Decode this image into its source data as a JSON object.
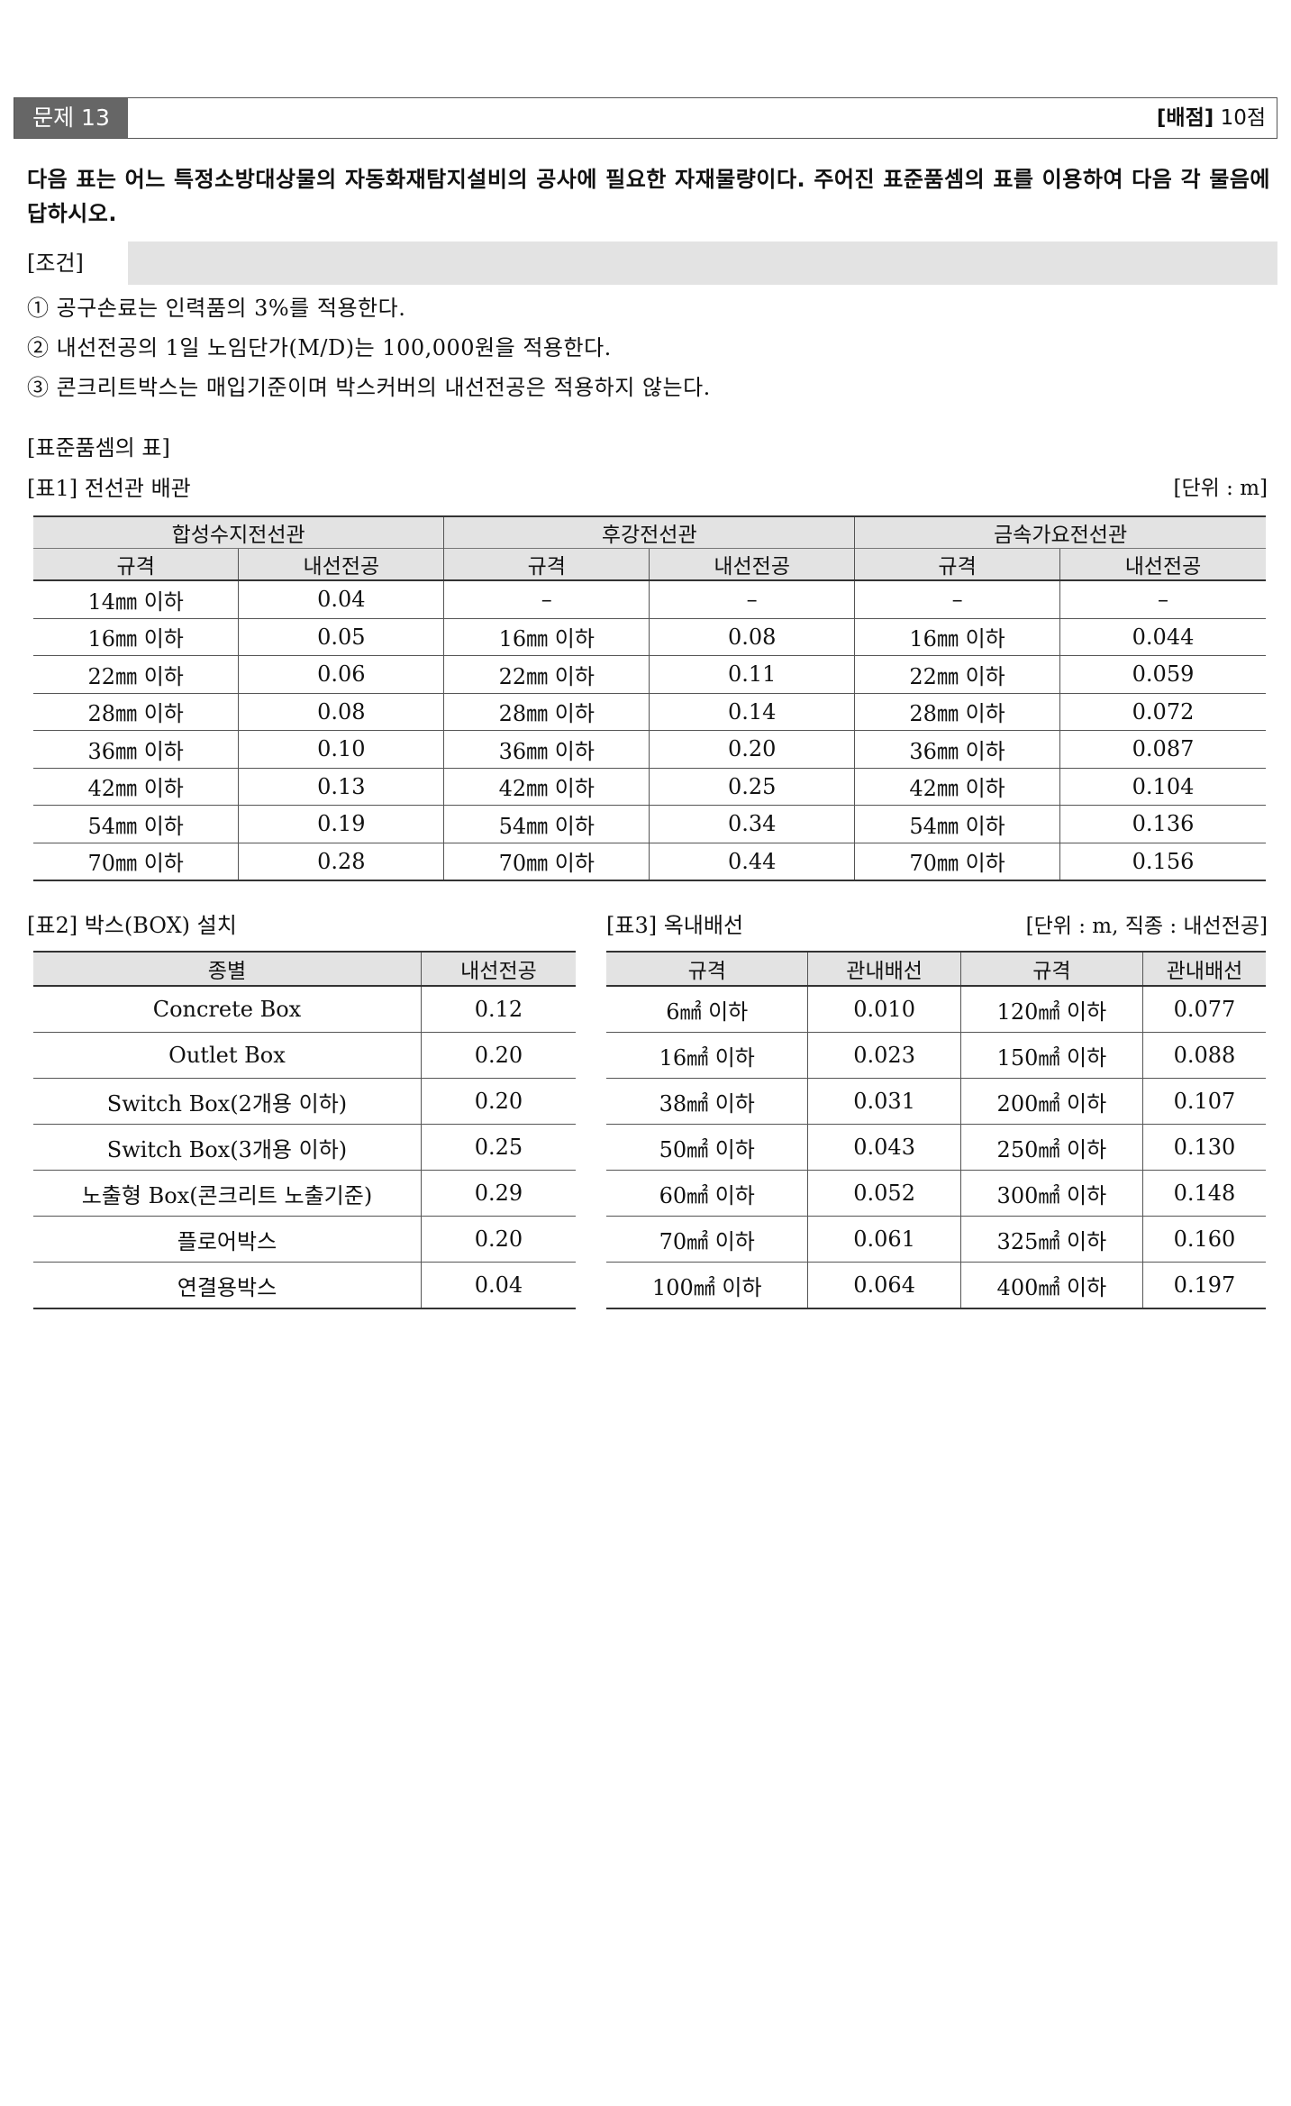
{
  "header": {
    "problem": "문제 13",
    "score_label": "[배점]",
    "score_value": "10점"
  },
  "question": "다음 표는 어느 특정소방대상물의 자동화재탐지설비의 공사에 필요한 자재물량이다. 주어진 표준품셈의 표를 이용하여 다음 각 물음에 답하시오.",
  "conditions": {
    "label": "[조건]",
    "items": [
      "① 공구손료는 인력품의 3%를 적용한다.",
      "② 내선전공의 1일 노임단가(M/D)는 100,000원을 적용한다.",
      "③ 콘크리트박스는 매입기준이며 박스커버의 내선전공은 적용하지 않는다."
    ]
  },
  "std_heading": "[표준품셈의 표]",
  "table1": {
    "title": "[표1] 전선관 배관",
    "unit": "[단위 : m]",
    "groups": [
      "합성수지전선관",
      "후강전선관",
      "금속가요전선관"
    ],
    "subheaders": [
      "규격",
      "내선전공",
      "규격",
      "내선전공",
      "규격",
      "내선전공"
    ],
    "rows": [
      [
        "14㎜ 이하",
        "0.04",
        "–",
        "–",
        "–",
        "–"
      ],
      [
        "16㎜ 이하",
        "0.05",
        "16㎜ 이하",
        "0.08",
        "16㎜ 이하",
        "0.044"
      ],
      [
        "22㎜ 이하",
        "0.06",
        "22㎜ 이하",
        "0.11",
        "22㎜ 이하",
        "0.059"
      ],
      [
        "28㎜ 이하",
        "0.08",
        "28㎜ 이하",
        "0.14",
        "28㎜ 이하",
        "0.072"
      ],
      [
        "36㎜ 이하",
        "0.10",
        "36㎜ 이하",
        "0.20",
        "36㎜ 이하",
        "0.087"
      ],
      [
        "42㎜ 이하",
        "0.13",
        "42㎜ 이하",
        "0.25",
        "42㎜ 이하",
        "0.104"
      ],
      [
        "54㎜ 이하",
        "0.19",
        "54㎜ 이하",
        "0.34",
        "54㎜ 이하",
        "0.136"
      ],
      [
        "70㎜ 이하",
        "0.28",
        "70㎜ 이하",
        "0.44",
        "70㎜ 이하",
        "0.156"
      ]
    ]
  },
  "table2": {
    "title": "[표2] 박스(BOX) 설치",
    "headers": [
      "종별",
      "내선전공"
    ],
    "rows": [
      [
        "Concrete Box",
        "0.12"
      ],
      [
        "Outlet Box",
        "0.20"
      ],
      [
        "Switch Box(2개용 이하)",
        "0.20"
      ],
      [
        "Switch Box(3개용 이하)",
        "0.25"
      ],
      [
        "노출형 Box(콘크리트 노출기준)",
        "0.29"
      ],
      [
        "플로어박스",
        "0.20"
      ],
      [
        "연결용박스",
        "0.04"
      ]
    ]
  },
  "table3": {
    "title": "[표3] 옥내배선",
    "unit": "[단위 : m, 직종 : 내선전공]",
    "headers": [
      "규격",
      "관내배선",
      "규격",
      "관내배선"
    ],
    "rows": [
      [
        "6㎟ 이하",
        "0.010",
        "120㎟ 이하",
        "0.077"
      ],
      [
        "16㎟ 이하",
        "0.023",
        "150㎟ 이하",
        "0.088"
      ],
      [
        "38㎟ 이하",
        "0.031",
        "200㎟ 이하",
        "0.107"
      ],
      [
        "50㎟ 이하",
        "0.043",
        "250㎟ 이하",
        "0.130"
      ],
      [
        "60㎟ 이하",
        "0.052",
        "300㎟ 이하",
        "0.148"
      ],
      [
        "70㎟ 이하",
        "0.061",
        "325㎟ 이하",
        "0.160"
      ],
      [
        "100㎟ 이하",
        "0.064",
        "400㎟ 이하",
        "0.197"
      ]
    ]
  }
}
